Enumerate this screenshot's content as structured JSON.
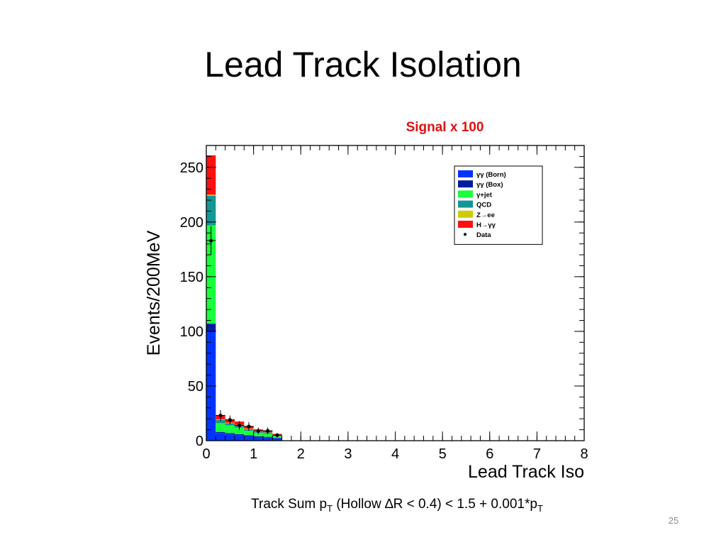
{
  "slide": {
    "title": "Lead Track Isolation",
    "signal_note": "Signal x 100",
    "caption_parts": [
      "Track Sum p",
      "T",
      " (Hollow ",
      "∆",
      "R < 0.4) < 1.5 + 0.001*p",
      "T"
    ],
    "page_number": "25"
  },
  "chart_data": {
    "type": "bar",
    "stacked": true,
    "xlabel": "Lead Track Iso",
    "ylabel": "Events/200MeV",
    "xlim": [
      0,
      8
    ],
    "ylim": [
      0,
      270
    ],
    "x_ticks": [
      0,
      1,
      2,
      3,
      4,
      5,
      6,
      7,
      8
    ],
    "y_ticks": [
      0,
      50,
      100,
      150,
      200,
      250
    ],
    "bin_width": 0.2,
    "bin_edges": [
      0.0,
      0.2,
      0.4,
      0.6,
      0.8,
      1.0,
      1.2,
      1.4,
      1.6
    ],
    "series": [
      {
        "name": "γγ (Born)",
        "color": "#0033ff",
        "values": [
          100,
          7,
          6,
          5,
          4,
          3,
          3,
          2
        ]
      },
      {
        "name": "γγ (Box)",
        "color": "#001aa0",
        "values": [
          7,
          1,
          1,
          1,
          1,
          1,
          0.5,
          0.5
        ]
      },
      {
        "name": "γ+jet",
        "color": "#19ff3c",
        "values": [
          90,
          8,
          7,
          6,
          4,
          3,
          3,
          2
        ]
      },
      {
        "name": "QCD",
        "color": "#139696",
        "values": [
          27,
          3,
          2,
          2,
          1.5,
          1,
          1,
          0.5
        ]
      },
      {
        "name": "Z→ee",
        "color": "#cccc00",
        "values": [
          1,
          0.5,
          0.5,
          0.5,
          0.5,
          0.3,
          0.3,
          0.2
        ]
      },
      {
        "name": "H→γγ",
        "color": "#ff1010",
        "values": [
          36,
          4,
          3,
          3,
          2.5,
          2,
          1.5,
          1
        ]
      }
    ],
    "data_points": {
      "name": "Data",
      "x": [
        0.1,
        0.3,
        0.5,
        0.7,
        0.9,
        1.1,
        1.3,
        1.5
      ],
      "y": [
        183,
        23,
        19,
        14,
        13,
        9,
        9,
        5
      ],
      "err": [
        13,
        5,
        4,
        4,
        4,
        3,
        3,
        2
      ]
    },
    "legend_position": "top-right"
  }
}
